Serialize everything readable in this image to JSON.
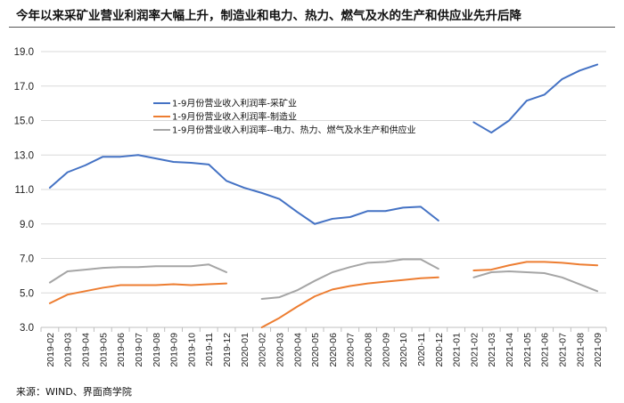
{
  "source": "来源：WIND、界面商学院",
  "chart_data": {
    "type": "line",
    "title": "今年以来采矿业营业利润率大幅上升，制造业和电力、热力、燃气及水的生产和供应业先升后降",
    "xlabel": "",
    "ylabel": "",
    "ylim": [
      3.0,
      19.0
    ],
    "yticks": [
      "3.0",
      "5.0",
      "7.0",
      "9.0",
      "11.0",
      "13.0",
      "15.0",
      "17.0",
      "19.0"
    ],
    "ytick_values": [
      3,
      5,
      7,
      9,
      11,
      13,
      15,
      17,
      19
    ],
    "grid": "horizontal",
    "legend_position": "top-left-inside",
    "categories": [
      "2019-02",
      "2019-03",
      "2019-04",
      "2019-05",
      "2019-06",
      "2019-07",
      "2019-08",
      "2019-09",
      "2019-10",
      "2019-11",
      "2019-12",
      "2020-01",
      "2020-02",
      "2020-03",
      "2020-04",
      "2020-05",
      "2020-06",
      "2020-07",
      "2020-08",
      "2020-09",
      "2020-10",
      "2020-11",
      "2020-12",
      "2021-01",
      "2021-02",
      "2021-03",
      "2021-04",
      "2021-05",
      "2021-06",
      "2021-07",
      "2021-08",
      "2021-09"
    ],
    "series": [
      {
        "name": "1-9月份营业收入利润率-采矿业",
        "color": "#4472C4",
        "values": [
          11.1,
          12.0,
          12.4,
          12.9,
          12.9,
          13.0,
          12.8,
          12.6,
          12.55,
          12.45,
          11.5,
          11.1,
          10.8,
          10.45,
          9.7,
          9.0,
          9.3,
          9.4,
          9.75,
          9.75,
          9.95,
          10.0,
          9.2,
          null,
          14.9,
          14.3,
          15.0,
          16.15,
          16.5,
          17.4,
          17.9,
          18.25
        ]
      },
      {
        "name": "1-9月份营业收入利润率-制造业",
        "color": "#ED7D31",
        "values": [
          4.4,
          4.9,
          5.1,
          5.3,
          5.45,
          5.45,
          5.45,
          5.5,
          5.45,
          5.5,
          5.55,
          null,
          3.0,
          3.55,
          4.2,
          4.8,
          5.2,
          5.4,
          5.55,
          5.65,
          5.75,
          5.85,
          5.9,
          null,
          6.3,
          6.35,
          6.6,
          6.8,
          6.8,
          6.75,
          6.65,
          6.6
        ]
      },
      {
        "name": "1-9月份营业收入利润率--电力、热力、燃气及水生产和供应业",
        "color": "#A5A5A5",
        "values": [
          5.6,
          6.25,
          6.35,
          6.45,
          6.5,
          6.5,
          6.55,
          6.55,
          6.55,
          6.65,
          6.2,
          null,
          4.65,
          4.75,
          5.15,
          5.7,
          6.2,
          6.5,
          6.75,
          6.8,
          6.95,
          6.95,
          6.4,
          null,
          5.9,
          6.2,
          6.25,
          6.2,
          6.15,
          5.9,
          5.5,
          5.1
        ]
      }
    ]
  }
}
